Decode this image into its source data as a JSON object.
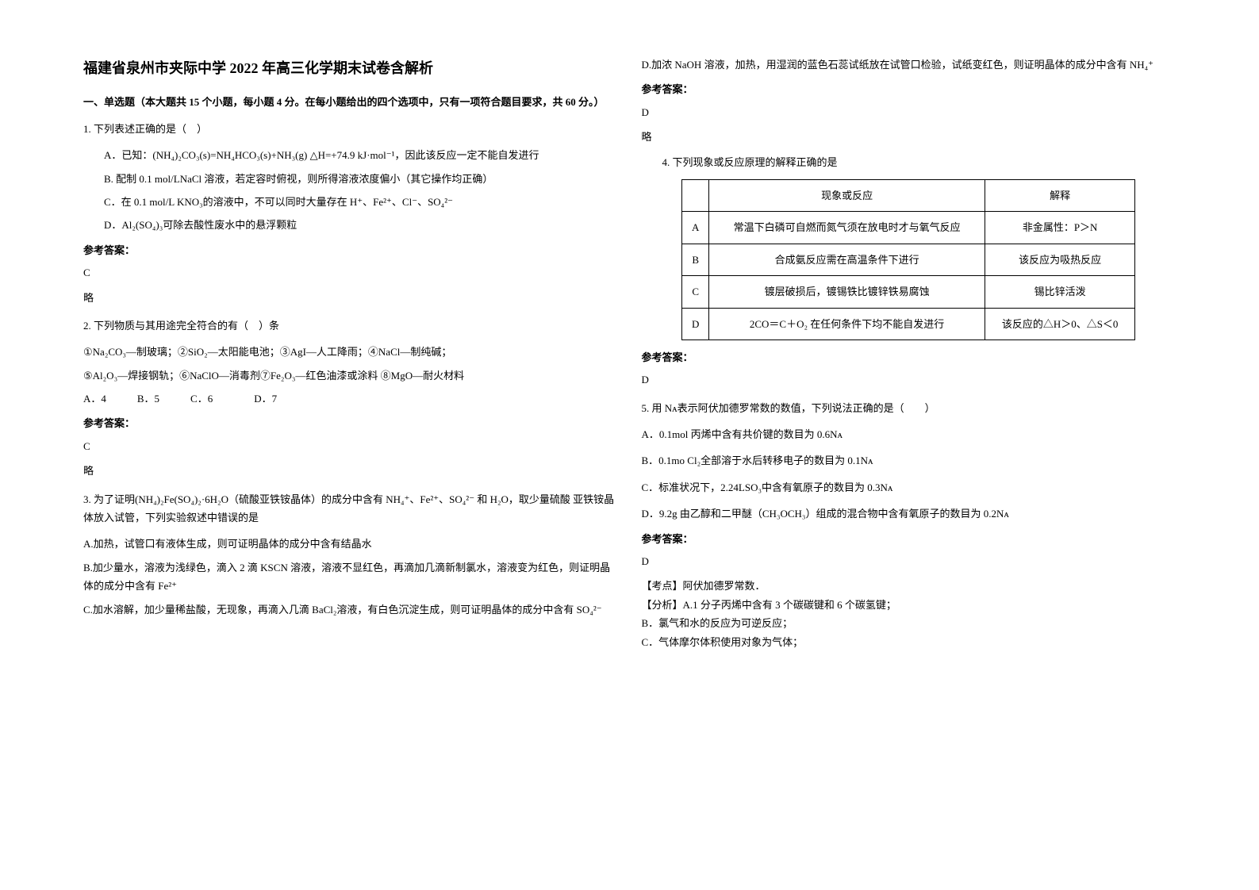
{
  "title": "福建省泉州市夹际中学 2022 年高三化学期末试卷含解析",
  "section_header": "一、单选题（本大题共 15 个小题，每小题 4 分。在每小题给出的四个选项中，只有一项符合题目要求，共 60 分。）",
  "q1": {
    "stem": "1. 下列表述正确的是（　）",
    "optA": "A．已知：(NH₄)₂CO₃(s)=NH₄HCO₃(s)+NH₃(g)  △H=+74.9 kJ·mol⁻¹，因此该反应一定不能自发进行",
    "optB": "B. 配制 0.1 mol/LNaCl 溶液，若定容时俯视，则所得溶液浓度偏小（其它操作均正确）",
    "optC": "C．在 0.1 mol/L KNO₃的溶液中，不可以同时大量存在 H⁺、Fe²⁺、Cl⁻、SO₄²⁻",
    "optD": "D．Al₂(SO₄)₃可除去酸性废水中的悬浮颗粒"
  },
  "answer_label": "参考答案：",
  "q1_answer": "C",
  "q1_explain": "略",
  "q2": {
    "stem": "2. 下列物质与其用途完全符合的有（　）条",
    "line1": "①Na₂CO₃—制玻璃；②SiO₂—太阳能电池；③AgI—人工降雨；④NaCl—制纯碱；",
    "line2": "⑤Al₂O₃—焊接钢轨；⑥NaClO—消毒剂⑦Fe₂O₃—红色油漆或涂料 ⑧MgO—耐火材料",
    "opts": "A．4　　　B．5　　　C．6　　　　D．7"
  },
  "q2_answer": "C",
  "q2_explain": "略",
  "q3": {
    "stem": "3. 为了证明(NH₄)₂Fe(SO₄)₂·6H₂O（硫酸亚铁铵晶体）的成分中含有 NH₄⁺、Fe²⁺、SO₄²⁻ 和 H₂O，取少量硫酸 亚铁铵晶体放入试管，下列实验叙述中错误的是",
    "optA": "A.加热，试管口有液体生成，则可证明晶体的成分中含有结晶水",
    "optB": "B.加少量水，溶液为浅绿色，滴入 2 滴 KSCN 溶液，溶液不显红色，再滴加几滴新制氯水，溶液变为红色，则证明晶体的成分中含有 Fe²⁺",
    "optC": "C.加水溶解，加少量稀盐酸，无现象，再滴入几滴 BaCl₂溶液，有白色沉淀生成，则可证明晶体的成分中含有 SO₄²⁻",
    "optD": "D.加浓 NaOH 溶液，加热，用湿润的蓝色石蕊试纸放在试管口检验，试纸变红色，则证明晶体的成分中含有 NH₄⁺"
  },
  "q3_answer": "D",
  "q3_explain": "略",
  "q4": {
    "stem": "4. 下列现象或反应原理的解释正确的是",
    "header1": "现象或反应",
    "header2": "解释",
    "rows": [
      {
        "label": "A",
        "phenomenon": "常温下白磷可自燃而氮气须在放电时才与氧气反应",
        "explain": "非金属性：P＞N"
      },
      {
        "label": "B",
        "phenomenon": "合成氨反应需在高温条件下进行",
        "explain": "该反应为吸热反应"
      },
      {
        "label": "C",
        "phenomenon": "镀层破损后，镀锡铁比镀锌铁易腐蚀",
        "explain": "锡比锌活泼"
      },
      {
        "label": "D",
        "phenomenon": "2CO＝C＋O₂ 在任何条件下均不能自发进行",
        "explain": "该反应的△H＞0、△S＜0"
      }
    ]
  },
  "q4_answer": "D",
  "q5": {
    "stem": "5. 用 Nᴀ表示阿伏加德罗常数的数值，下列说法正确的是（　　）",
    "optA": "A．0.1mol 丙烯中含有共价键的数目为 0.6Nᴀ",
    "optB": "B．0.1mo Cl₂全部溶于水后转移电子的数目为 0.1Nᴀ",
    "optC": "C．标准状况下，2.24LSO₃中含有氧原子的数目为 0.3Nᴀ",
    "optD": "D．9.2g 由乙醇和二甲醚（CH₃OCH₃）组成的混合物中含有氧原子的数目为 0.2Nᴀ"
  },
  "q5_answer": "D",
  "q5_kaodian": "【考点】阿伏加德罗常数．",
  "q5_fenxi_a": "【分析】A.1 分子丙烯中含有 3 个碳碳键和 6 个碳氢键；",
  "q5_fenxi_b": "B．氯气和水的反应为可逆反应；",
  "q5_fenxi_c": "C．气体摩尔体积使用对象为气体；"
}
